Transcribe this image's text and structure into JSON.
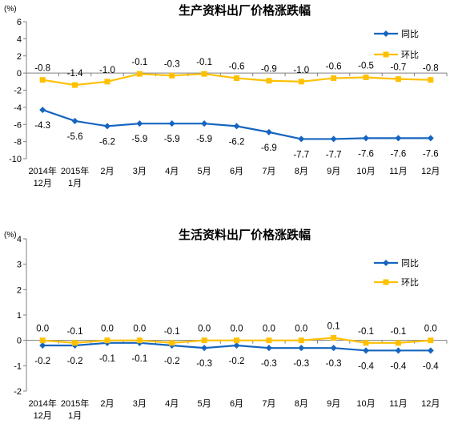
{
  "colors": {
    "yoy": "#1565C0",
    "mom": "#FFC000",
    "axis": "#808080"
  },
  "chart_data": [
    {
      "type": "line",
      "title": "生产资料出厂价格涨跌幅",
      "unit_label": "(%)",
      "ylim": [
        -10,
        6
      ],
      "yticks": [
        -10,
        -8,
        -6,
        -4,
        -2,
        0,
        2,
        4,
        6
      ],
      "categories": [
        [
          "2014年",
          "12月"
        ],
        [
          "2015年",
          "1月"
        ],
        [
          "2月"
        ],
        [
          "3月"
        ],
        [
          "4月"
        ],
        [
          "5月"
        ],
        [
          "6月"
        ],
        [
          "7月"
        ],
        [
          "8月"
        ],
        [
          "9月"
        ],
        [
          "10月"
        ],
        [
          "11月"
        ],
        [
          "12月"
        ]
      ],
      "legend_position": "top-right",
      "grid": false,
      "series": [
        {
          "name": "同比",
          "color": "#1565C0",
          "marker": "diamond",
          "label_position": "below",
          "values": [
            -4.3,
            -5.6,
            -6.2,
            -5.9,
            -5.9,
            -5.9,
            -6.2,
            -6.9,
            -7.7,
            -7.7,
            -7.6,
            -7.6,
            -7.6
          ],
          "labels": [
            "-4.3",
            "-5.6",
            "-6.2",
            "-5.9",
            "-5.9",
            "-5.9",
            "-6.2",
            "-6.9",
            "-7.7",
            "-7.7",
            "-7.6",
            "-7.6",
            "-7.6"
          ]
        },
        {
          "name": "环比",
          "color": "#FFC000",
          "marker": "square",
          "label_position": "above",
          "values": [
            -0.8,
            -1.4,
            -1.0,
            -0.1,
            -0.3,
            -0.1,
            -0.6,
            -0.9,
            -1.0,
            -0.6,
            -0.5,
            -0.7,
            -0.8
          ],
          "labels": [
            "-0.8",
            "-1.4",
            "-1.0",
            "-0.1",
            "-0.3",
            "-0.1",
            "-0.6",
            "-0.9",
            "-1.0",
            "-0.6",
            "-0.5",
            "-0.7",
            "-0.8"
          ]
        }
      ]
    },
    {
      "type": "line",
      "title": "生活资料出厂价格涨跌幅",
      "unit_label": "(%)",
      "ylim": [
        -2,
        4
      ],
      "yticks": [
        -2,
        -1,
        0,
        1,
        2,
        3,
        4
      ],
      "categories": [
        [
          "2014年",
          "12月"
        ],
        [
          "2015年",
          "1月"
        ],
        [
          "2月"
        ],
        [
          "3月"
        ],
        [
          "4月"
        ],
        [
          "5月"
        ],
        [
          "6月"
        ],
        [
          "7月"
        ],
        [
          "8月"
        ],
        [
          "9月"
        ],
        [
          "10月"
        ],
        [
          "11月"
        ],
        [
          "12月"
        ]
      ],
      "legend_position": "right",
      "grid": false,
      "series": [
        {
          "name": "同比",
          "color": "#1565C0",
          "marker": "diamond",
          "label_position": "below",
          "values": [
            -0.2,
            -0.2,
            -0.1,
            -0.1,
            -0.2,
            -0.3,
            -0.2,
            -0.3,
            -0.3,
            -0.3,
            -0.4,
            -0.4,
            -0.4
          ],
          "labels": [
            "-0.2",
            "-0.2",
            "-0.1",
            "-0.1",
            "-0.2",
            "-0.3",
            "-0.2",
            "-0.3",
            "-0.3",
            "-0.3",
            "-0.4",
            "-0.4",
            "-0.4"
          ]
        },
        {
          "name": "环比",
          "color": "#FFC000",
          "marker": "square",
          "label_position": "above",
          "values": [
            0.0,
            -0.1,
            0.0,
            0.0,
            -0.1,
            0.0,
            0.0,
            0.0,
            0.0,
            0.1,
            -0.1,
            -0.1,
            0.0
          ],
          "labels": [
            "0.0",
            "-0.1",
            "0.0",
            "0.0",
            "-0.1",
            "0.0",
            "0.0",
            "0.0",
            "0.0",
            "0.1",
            "-0.1",
            "-0.1",
            "0.0"
          ]
        }
      ]
    }
  ]
}
